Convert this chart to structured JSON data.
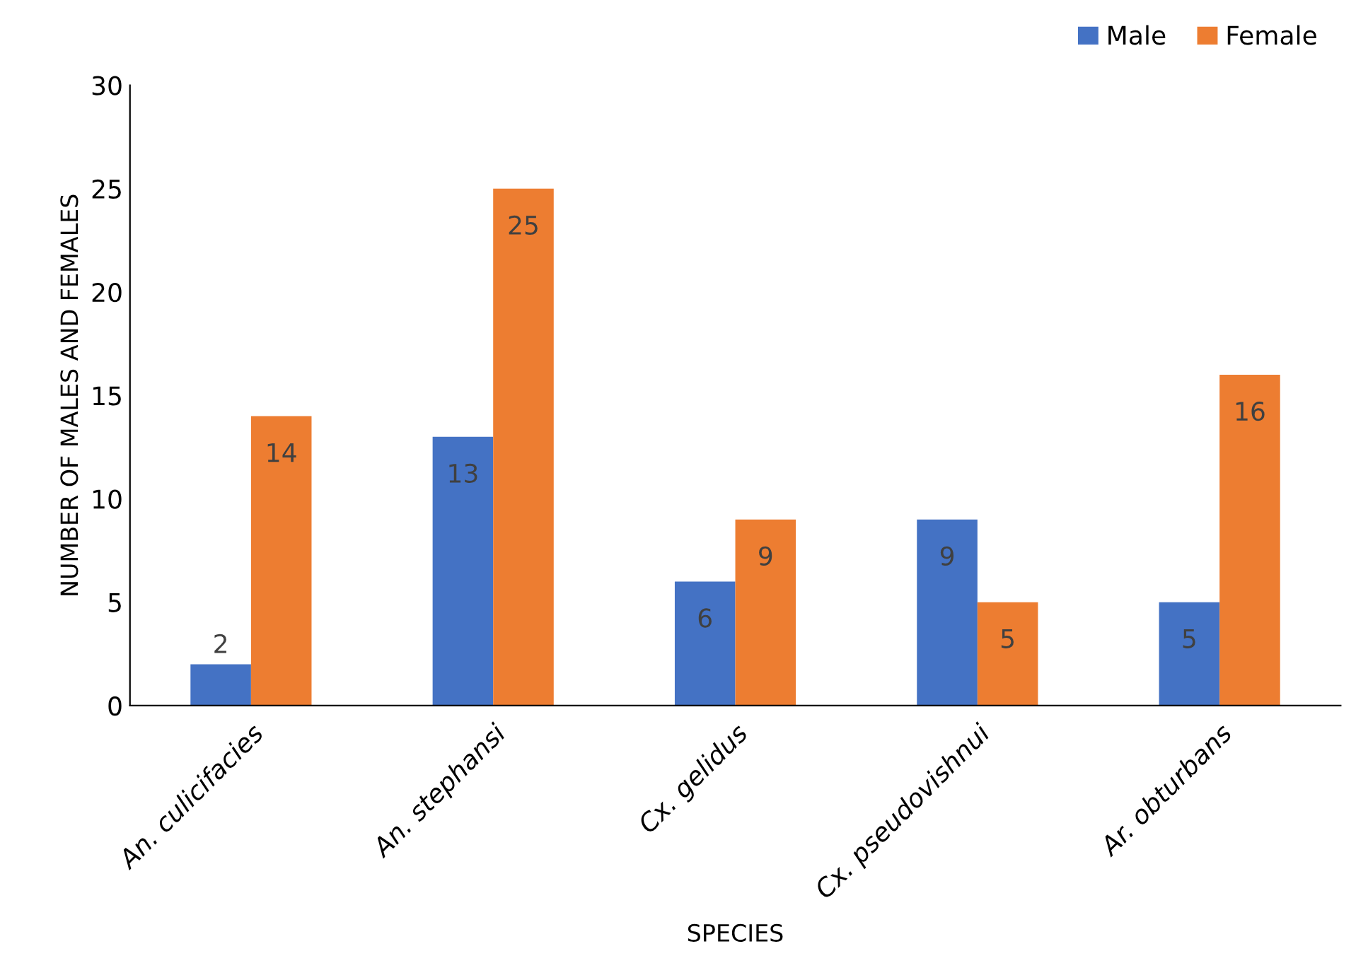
{
  "chart_data": {
    "type": "bar",
    "xlabel": "SPECIES",
    "ylabel": "NUMBER OF MALES AND FEMALES",
    "categories": [
      "An. culicifacies",
      "An. stephansi",
      "Cx. gelidus",
      "Cx. pseudovishnui",
      "Ar. obturbans"
    ],
    "series": [
      {
        "name": "Male",
        "color": "#4472c4",
        "values": [
          2,
          13,
          6,
          9,
          5
        ]
      },
      {
        "name": "Female",
        "color": "#ed7d31",
        "values": [
          14,
          25,
          9,
          5,
          16
        ]
      }
    ],
    "ylim": [
      0,
      30
    ],
    "yticks": [
      0,
      5,
      10,
      15,
      20,
      25,
      30
    ],
    "data_labels": true,
    "grid": false,
    "legend": "top right"
  }
}
